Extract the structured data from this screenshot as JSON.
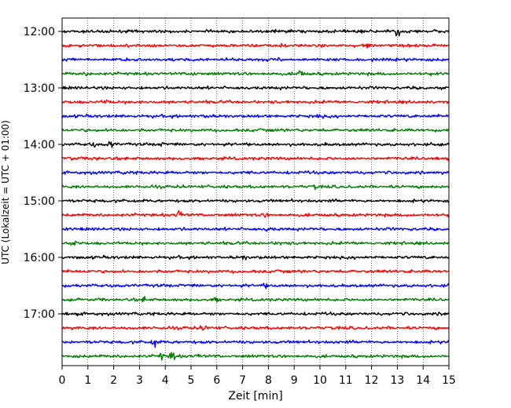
{
  "chart_data": {
    "type": "line",
    "title": "",
    "xlabel": "Zeit  [min]",
    "ylabel": "UTC (Lokalzeit = UTC + 01:00)",
    "xlim": [
      0,
      15
    ],
    "x_ticks": [
      "0",
      "1",
      "2",
      "3",
      "4",
      "5",
      "6",
      "7",
      "8",
      "9",
      "10",
      "11",
      "12",
      "13",
      "14",
      "15"
    ],
    "y_ticks": [
      "12:00",
      "13:00",
      "14:00",
      "15:00",
      "16:00",
      "17:00"
    ],
    "grid": "vertical dotted",
    "row_minutes": 15,
    "trace_colors": [
      "#000000",
      "#ff0000",
      "#0000ff",
      "#008000"
    ],
    "series": [
      {
        "start": "12:00",
        "color": "#000000",
        "events": [
          {
            "x": 13.0,
            "amp": 10
          }
        ]
      },
      {
        "start": "12:15",
        "color": "#ff0000",
        "events": [
          {
            "x": 11.8,
            "amp": 5
          },
          {
            "x": 8.6,
            "amp": 3
          }
        ]
      },
      {
        "start": "12:30",
        "color": "#0000ff",
        "events": []
      },
      {
        "start": "12:45",
        "color": "#008000",
        "events": [
          {
            "x": 5.1,
            "amp": 6
          },
          {
            "x": 9.25,
            "amp": 11
          },
          {
            "x": 1.0,
            "amp": 3
          }
        ]
      },
      {
        "start": "13:00",
        "color": "#000000",
        "events": []
      },
      {
        "start": "13:15",
        "color": "#ff0000",
        "events": [
          {
            "x": 1.7,
            "amp": 4
          }
        ]
      },
      {
        "start": "13:30",
        "color": "#0000ff",
        "events": [
          {
            "x": 5.6,
            "amp": 5
          },
          {
            "x": 10.0,
            "amp": 3
          }
        ]
      },
      {
        "start": "13:45",
        "color": "#008000",
        "events": [
          {
            "x": 2.0,
            "amp": 3
          }
        ]
      },
      {
        "start": "14:00",
        "color": "#000000",
        "events": [
          {
            "x": 1.9,
            "amp": 10
          },
          {
            "x": 1.2,
            "amp": 4
          },
          {
            "x": 3.8,
            "amp": 4
          },
          {
            "x": 10.1,
            "amp": 4
          }
        ]
      },
      {
        "start": "14:15",
        "color": "#ff0000",
        "events": [
          {
            "x": 0.3,
            "amp": 5
          },
          {
            "x": 1.3,
            "amp": 7
          }
        ]
      },
      {
        "start": "14:30",
        "color": "#0000ff",
        "events": [
          {
            "x": 2.5,
            "amp": 3
          }
        ]
      },
      {
        "start": "14:45",
        "color": "#008000",
        "events": [
          {
            "x": 9.8,
            "amp": 3
          }
        ]
      },
      {
        "start": "15:00",
        "color": "#000000",
        "events": []
      },
      {
        "start": "15:15",
        "color": "#ff0000",
        "events": [
          {
            "x": 4.55,
            "amp": 11
          },
          {
            "x": 7.9,
            "amp": 3
          }
        ]
      },
      {
        "start": "15:30",
        "color": "#0000ff",
        "events": [
          {
            "x": 8.0,
            "amp": 5
          }
        ]
      },
      {
        "start": "15:45",
        "color": "#008000",
        "events": [
          {
            "x": 8.4,
            "amp": 4
          },
          {
            "x": 0.5,
            "amp": 3
          }
        ]
      },
      {
        "start": "16:00",
        "color": "#000000",
        "events": [
          {
            "x": 7.1,
            "amp": 3
          }
        ]
      },
      {
        "start": "16:15",
        "color": "#ff0000",
        "events": []
      },
      {
        "start": "16:30",
        "color": "#0000ff",
        "events": [
          {
            "x": 7.9,
            "amp": 3
          }
        ]
      },
      {
        "start": "16:45",
        "color": "#008000",
        "events": [
          {
            "x": 3.2,
            "amp": 4
          },
          {
            "x": 5.95,
            "amp": 4
          }
        ]
      },
      {
        "start": "17:00",
        "color": "#000000",
        "events": [
          {
            "x": 14.8,
            "amp": 3
          }
        ]
      },
      {
        "start": "17:15",
        "color": "#ff0000",
        "events": [
          {
            "x": 5.5,
            "amp": 6
          }
        ]
      },
      {
        "start": "17:30",
        "color": "#0000ff",
        "events": [
          {
            "x": 3.6,
            "amp": 9
          }
        ]
      },
      {
        "start": "17:45",
        "color": "#008000",
        "events": [
          {
            "x": 4.3,
            "amp": 12
          },
          {
            "x": 3.85,
            "amp": 6
          },
          {
            "x": 5.3,
            "amp": 4
          }
        ]
      }
    ]
  }
}
